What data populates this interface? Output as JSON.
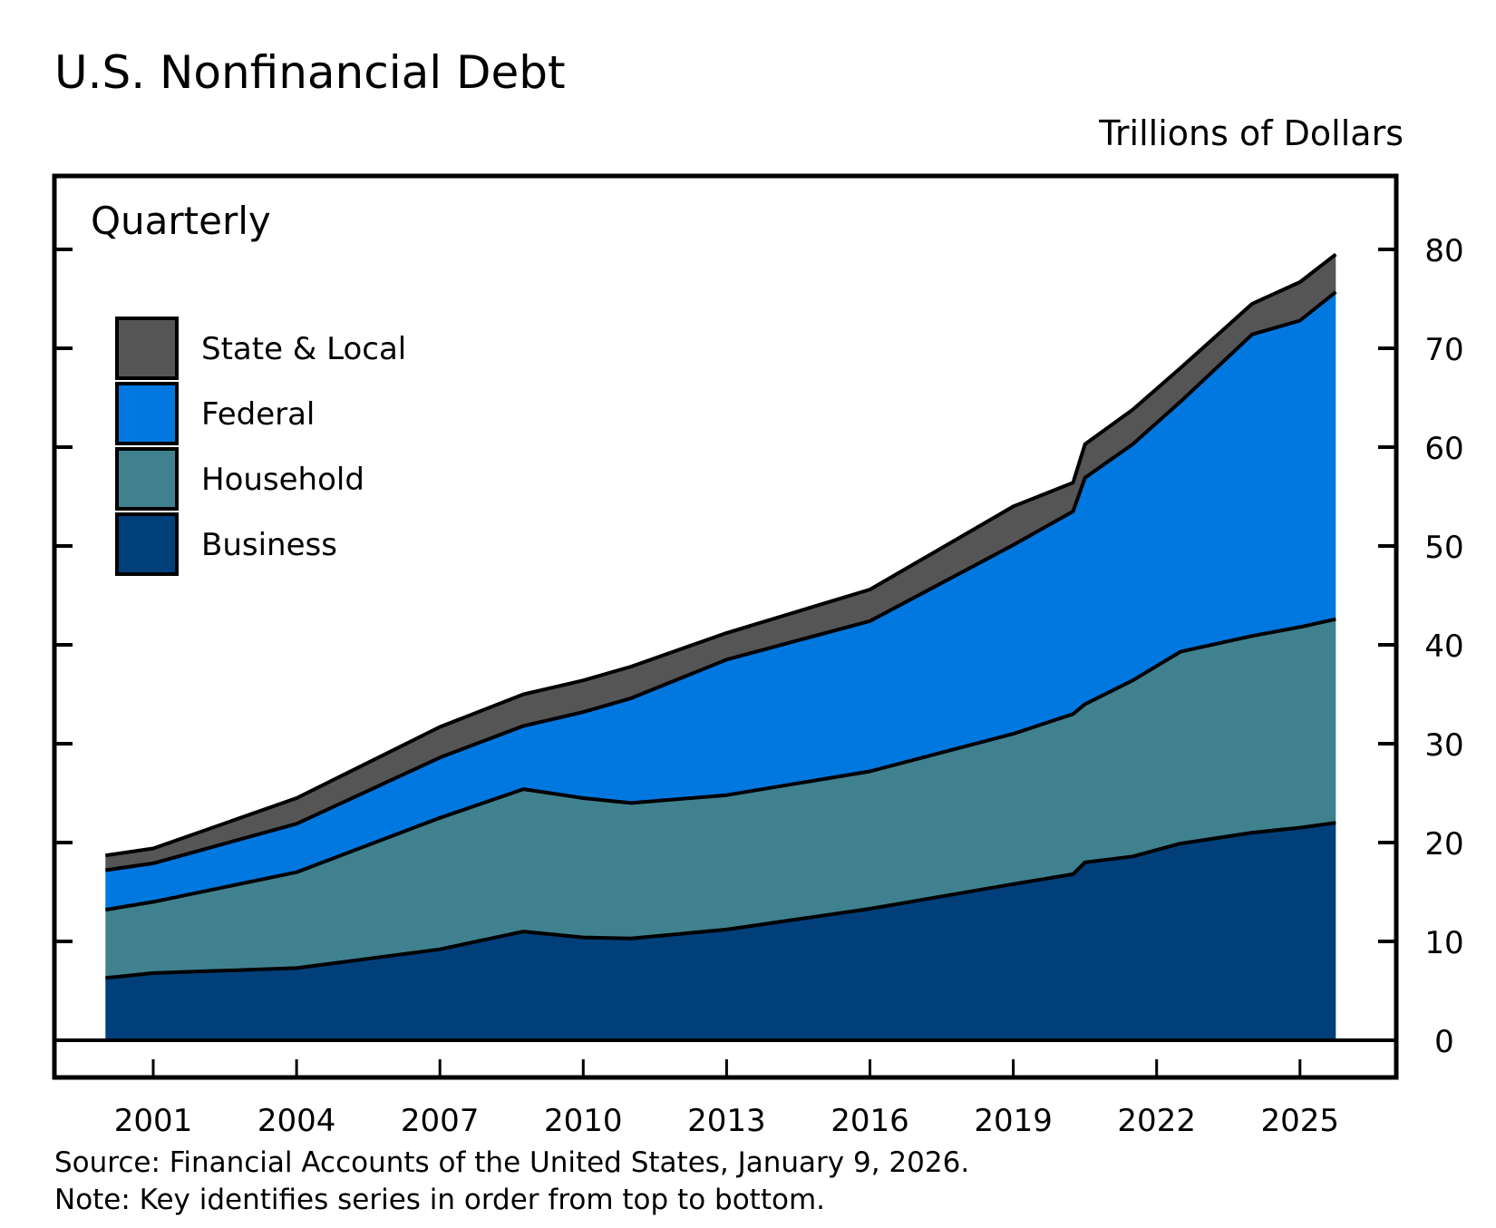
{
  "chart_data": {
    "type": "area",
    "stacked": true,
    "title": "U.S. Nonfinancial Debt",
    "units_label": "Trillions of Dollars",
    "frequency_label": "Quarterly",
    "ylim": [
      0,
      80
    ],
    "yticks": [
      0,
      10,
      20,
      30,
      40,
      50,
      60,
      70,
      80
    ],
    "y_axis_side": "right",
    "xlim": [
      2000,
      2027
    ],
    "xticks": [
      2001,
      2004,
      2007,
      2010,
      2013,
      2016,
      2019,
      2022,
      2025
    ],
    "grid": false,
    "legend_placement": "top-left",
    "x": [
      2000,
      2001,
      2004,
      2007,
      2008.75,
      2010,
      2011,
      2013,
      2016,
      2019,
      2020.25,
      2020.5,
      2021.5,
      2022.5,
      2024,
      2025,
      2025.75
    ],
    "series": [
      {
        "name": "Business",
        "color": "#003f7a",
        "values": [
          6.3,
          6.8,
          7.3,
          9.2,
          11.0,
          10.4,
          10.3,
          11.2,
          13.3,
          15.8,
          16.8,
          18.0,
          18.6,
          19.9,
          21.0,
          21.5,
          22.0
        ]
      },
      {
        "name": "Household",
        "color": "#40818f",
        "values": [
          6.9,
          7.2,
          9.7,
          13.3,
          14.4,
          14.1,
          13.7,
          13.6,
          13.9,
          15.2,
          16.2,
          16.0,
          17.8,
          19.4,
          19.9,
          20.3,
          20.6
        ]
      },
      {
        "name": "Federal",
        "color": "#0078e0",
        "values": [
          4.0,
          3.9,
          4.9,
          6.1,
          6.4,
          8.7,
          10.6,
          13.7,
          15.2,
          19.1,
          20.5,
          22.9,
          23.9,
          25.3,
          30.5,
          31.0,
          33.1
        ]
      },
      {
        "name": "State & Local",
        "color": "#555555",
        "values": [
          1.5,
          1.5,
          2.6,
          3.1,
          3.2,
          3.2,
          3.2,
          2.7,
          3.2,
          3.9,
          2.9,
          3.4,
          3.5,
          3.4,
          3.1,
          3.9,
          3.8
        ]
      }
    ],
    "legend_order": [
      "State & Local",
      "Federal",
      "Household",
      "Business"
    ],
    "source": "Source: Financial Accounts of the United States, January 9, 2026.",
    "note": "Note: Key identifies series in order from top to bottom."
  }
}
